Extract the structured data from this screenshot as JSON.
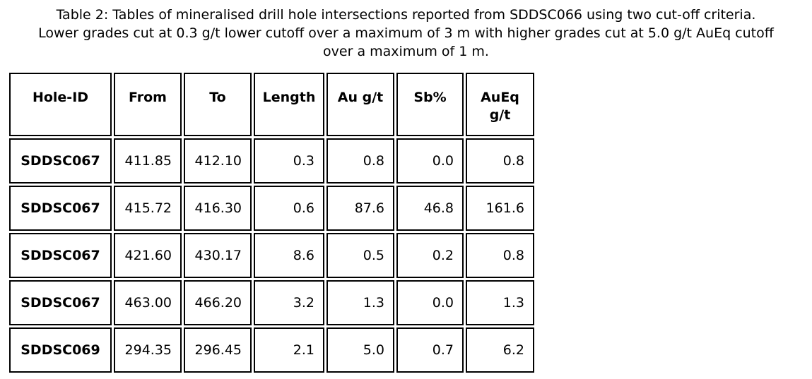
{
  "page": {
    "background": "#ffffff"
  },
  "colors": {
    "text": "#000000",
    "border": "#000000",
    "background": "#ffffff"
  },
  "caption": {
    "line1": "Table 2: Tables of mineralised drill hole intersections reported from SDDSC066 using two cut-off criteria.",
    "line2": "Lower grades cut at 0.3 g/t lower cutoff over a maximum of 3 m with higher grades cut at 5.0 g/t AuEq cutoff",
    "line3": "over a maximum of 1 m."
  },
  "table": {
    "headers": {
      "hole_id": "Hole-ID",
      "from": "From",
      "to": "To",
      "length": "Length",
      "au": "Au g/t",
      "sb": "Sb%",
      "aueq": "AuEq\ng/t"
    },
    "rows": [
      {
        "hole_id": "SDDSC067",
        "from": "411.85",
        "to": "412.10",
        "length": "0.3",
        "au": "0.8",
        "sb": "0.0",
        "aueq": "0.8"
      },
      {
        "hole_id": "SDDSC067",
        "from": "415.72",
        "to": "416.30",
        "length": "0.6",
        "au": "87.6",
        "sb": "46.8",
        "aueq": "161.6"
      },
      {
        "hole_id": "SDDSC067",
        "from": "421.60",
        "to": "430.17",
        "length": "8.6",
        "au": "0.5",
        "sb": "0.2",
        "aueq": "0.8"
      },
      {
        "hole_id": "SDDSC067",
        "from": "463.00",
        "to": "466.20",
        "length": "3.2",
        "au": "1.3",
        "sb": "0.0",
        "aueq": "1.3"
      },
      {
        "hole_id": "SDDSC069",
        "from": "294.35",
        "to": "296.45",
        "length": "2.1",
        "au": "5.0",
        "sb": "0.7",
        "aueq": "6.2"
      }
    ]
  }
}
